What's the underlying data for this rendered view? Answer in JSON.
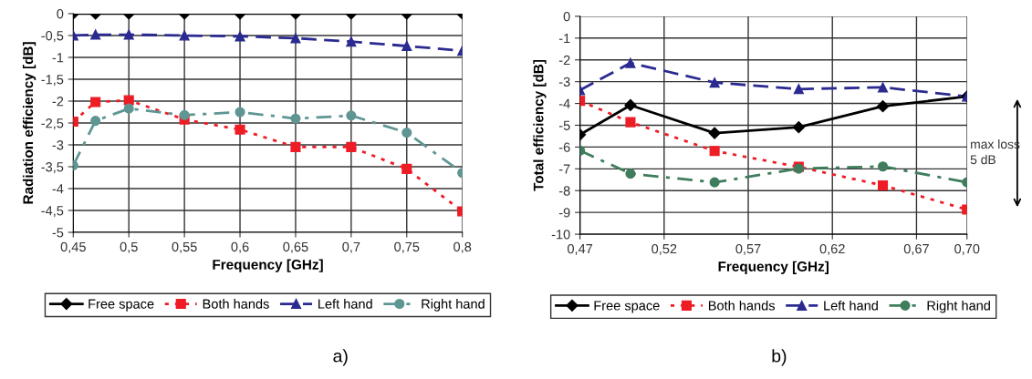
{
  "chart_data": [
    {
      "type": "line",
      "xlabel": "Frequency [GHz]",
      "ylabel": "Radiation efficiency [dB]",
      "x": [
        0.45,
        0.47,
        0.5,
        0.55,
        0.6,
        0.65,
        0.7,
        0.75,
        0.8
      ],
      "xlim": [
        0.45,
        0.8
      ],
      "xticks": [
        {
          "value": 0.45,
          "label": "0,45"
        },
        {
          "value": 0.5,
          "label": "0,5"
        },
        {
          "value": 0.55,
          "label": "0,55"
        },
        {
          "value": 0.6,
          "label": "0,6"
        },
        {
          "value": 0.65,
          "label": "0,65"
        },
        {
          "value": 0.7,
          "label": "0,7"
        },
        {
          "value": 0.75,
          "label": "0,75"
        },
        {
          "value": 0.8,
          "label": "0,8"
        }
      ],
      "ylim": [
        -5,
        0
      ],
      "yticks": [
        {
          "value": -5,
          "label": "-5"
        },
        {
          "value": -4.5,
          "label": "-4,5"
        },
        {
          "value": -4,
          "label": "-4"
        },
        {
          "value": -3.5,
          "label": "-3,5"
        },
        {
          "value": -3,
          "label": "-3"
        },
        {
          "value": -2.5,
          "label": "-2,5"
        },
        {
          "value": -2,
          "label": "-2"
        },
        {
          "value": -1.5,
          "label": "-1,5"
        },
        {
          "value": -1,
          "label": "-1"
        },
        {
          "value": -0.5,
          "label": "-0,5"
        },
        {
          "value": 0,
          "label": "0"
        }
      ],
      "grid": true,
      "legend": "bottom",
      "series": [
        {
          "name": "Free space",
          "color": "#000000",
          "marker": "diamond",
          "line_style": "solid",
          "values": [
            0,
            0,
            0,
            0,
            0,
            0,
            0,
            0,
            0
          ]
        },
        {
          "name": "Both hands",
          "color": "#ee1c25",
          "marker": "square",
          "line_style": "dotted",
          "values": [
            -2.47,
            -2.02,
            -1.98,
            -2.42,
            -2.65,
            -3.05,
            -3.05,
            -3.55,
            -4.52
          ]
        },
        {
          "name": "Left hand",
          "color": "#2b2a91",
          "marker": "triangle",
          "line_style": "dashed",
          "values": [
            -0.5,
            -0.48,
            -0.48,
            -0.5,
            -0.52,
            -0.56,
            -0.64,
            -0.74,
            -0.85
          ]
        },
        {
          "name": "Right hand",
          "color": "#5f9693",
          "marker": "circle",
          "line_style": "dashdot",
          "values": [
            -3.47,
            -2.45,
            -2.17,
            -2.32,
            -2.25,
            -2.4,
            -2.33,
            -2.72,
            -3.64
          ]
        }
      ],
      "annotations": [
        "a)"
      ]
    },
    {
      "type": "line",
      "xlabel": "Frequency [GHz]",
      "ylabel": "Total efficiency [dB]",
      "x": [
        0.47,
        0.5,
        0.55,
        0.6,
        0.65,
        0.7
      ],
      "xlim": [
        0.47,
        0.7
      ],
      "xticks": [
        {
          "value": 0.47,
          "label": "0,47"
        },
        {
          "value": 0.52,
          "label": "0,52"
        },
        {
          "value": 0.57,
          "label": "0,57"
        },
        {
          "value": 0.62,
          "label": "0,62"
        },
        {
          "value": 0.67,
          "label": "0,67"
        },
        {
          "value": 0.7,
          "label": "0,70"
        }
      ],
      "ylim": [
        -10,
        0
      ],
      "yticks": [
        -10,
        -9,
        -8,
        -7,
        -6,
        -5,
        -4,
        -3,
        -2,
        -1,
        0
      ],
      "grid": true,
      "legend": "bottom",
      "series": [
        {
          "name": "Free space",
          "color": "#000000",
          "marker": "diamond",
          "line_style": "solid",
          "values": [
            -5.43,
            -4.08,
            -5.36,
            -5.09,
            -4.13,
            -3.68
          ]
        },
        {
          "name": "Both hands",
          "color": "#ee1c25",
          "marker": "square",
          "line_style": "dotted",
          "values": [
            -3.88,
            -4.86,
            -6.18,
            -6.91,
            -7.76,
            -8.87
          ]
        },
        {
          "name": "Left hand",
          "color": "#2b2a91",
          "marker": "triangle",
          "line_style": "dashed",
          "values": [
            -3.39,
            -2.14,
            -3.04,
            -3.34,
            -3.26,
            -3.68
          ]
        },
        {
          "name": "Right hand",
          "color": "#3f7d5c",
          "marker": "circle",
          "line_style": "dashdot",
          "values": [
            -6.16,
            -7.22,
            -7.62,
            -6.99,
            -6.89,
            -7.62
          ]
        }
      ],
      "annotations": [
        "max loss\n5 dB",
        "b)"
      ]
    }
  ]
}
